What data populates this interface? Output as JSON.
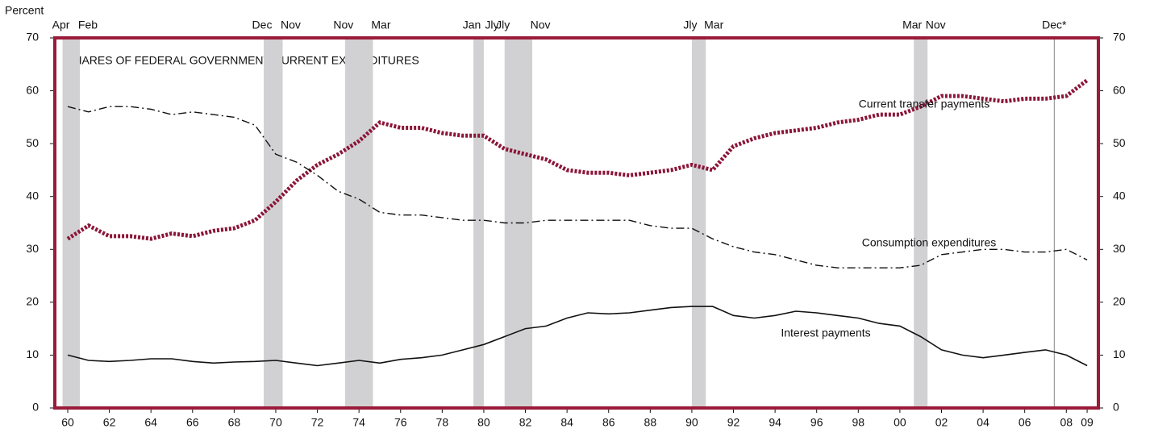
{
  "chart_data": {
    "type": "line",
    "title": "SHARES OF FEDERAL GOVERNMENT CURRENT EXPENDITURES",
    "y_label": "Percent",
    "xlim": [
      1959.88,
      2010.04
    ],
    "ylim": [
      0,
      70
    ],
    "yticks": [
      0,
      10,
      20,
      30,
      40,
      50,
      60,
      70
    ],
    "xticks": [
      {
        "value": 1960.5,
        "label": "60"
      },
      {
        "value": 1962.5,
        "label": "62"
      },
      {
        "value": 1964.5,
        "label": "64"
      },
      {
        "value": 1966.5,
        "label": "66"
      },
      {
        "value": 1968.5,
        "label": "68"
      },
      {
        "value": 1970.5,
        "label": "70"
      },
      {
        "value": 1972.5,
        "label": "72"
      },
      {
        "value": 1974.5,
        "label": "74"
      },
      {
        "value": 1976.5,
        "label": "76"
      },
      {
        "value": 1978.5,
        "label": "78"
      },
      {
        "value": 1980.5,
        "label": "80"
      },
      {
        "value": 1982.5,
        "label": "82"
      },
      {
        "value": 1984.5,
        "label": "84"
      },
      {
        "value": 1986.5,
        "label": "86"
      },
      {
        "value": 1988.5,
        "label": "88"
      },
      {
        "value": 1990.5,
        "label": "90"
      },
      {
        "value": 1992.5,
        "label": "92"
      },
      {
        "value": 1994.5,
        "label": "94"
      },
      {
        "value": 1996.5,
        "label": "96"
      },
      {
        "value": 1998.5,
        "label": "98"
      },
      {
        "value": 2000.5,
        "label": "00"
      },
      {
        "value": 2002.5,
        "label": "02"
      },
      {
        "value": 2004.5,
        "label": "04"
      },
      {
        "value": 2006.5,
        "label": "06"
      },
      {
        "value": 2008.5,
        "label": "08"
      },
      {
        "value": 2009.5,
        "label": "09"
      }
    ],
    "recessions": [
      {
        "start": 1960.25,
        "end": 1961.08,
        "start_label": "Apr",
        "end_label": "Feb"
      },
      {
        "start": 1969.92,
        "end": 1970.83,
        "start_label": "Dec",
        "end_label": "Nov"
      },
      {
        "start": 1973.83,
        "end": 1975.17,
        "start_label": "Nov",
        "end_label": "Mar"
      },
      {
        "start": 1980.0,
        "end": 1980.5,
        "start_label": "Jan",
        "end_label": "Jly"
      },
      {
        "start": 1981.5,
        "end": 1982.83,
        "start_label": "Jly",
        "end_label": "Nov"
      },
      {
        "start": 1990.5,
        "end": 1991.17,
        "start_label": "Jly",
        "end_label": "Mar"
      },
      {
        "start": 2001.17,
        "end": 2001.83,
        "start_label": "Mar",
        "end_label": "Nov"
      },
      {
        "start": 2007.92,
        "start_label": "Dec*"
      }
    ],
    "x": [
      1960.5,
      1961.5,
      1962.5,
      1963.5,
      1964.5,
      1965.5,
      1966.5,
      1967.5,
      1968.5,
      1969.5,
      1970.5,
      1971.5,
      1972.5,
      1973.5,
      1974.5,
      1975.5,
      1976.5,
      1977.5,
      1978.5,
      1979.5,
      1980.5,
      1981.5,
      1982.5,
      1983.5,
      1984.5,
      1985.5,
      1986.5,
      1987.5,
      1988.5,
      1989.5,
      1990.5,
      1991.5,
      1992.5,
      1993.5,
      1994.5,
      1995.5,
      1996.5,
      1997.5,
      1998.5,
      1999.5,
      2000.5,
      2001.5,
      2002.5,
      2003.5,
      2004.5,
      2005.5,
      2006.5,
      2007.5,
      2008.5,
      2009.5
    ],
    "series": [
      {
        "name": "Current transfer payments",
        "color": "#8b1538",
        "dash": "dotted",
        "values": [
          32,
          34.5,
          32.5,
          32.5,
          32,
          33,
          32.5,
          33.5,
          34,
          35.5,
          39,
          43,
          46,
          48,
          50.5,
          54,
          53,
          53,
          52,
          51.5,
          51.5,
          49,
          48,
          47,
          45,
          44.5,
          44.5,
          44,
          44.5,
          45,
          46,
          45,
          49.5,
          51,
          52,
          52.5,
          53,
          54,
          54.5,
          55.5,
          55.5,
          57,
          59,
          59,
          58.5,
          58,
          58.5,
          58.5,
          59,
          62
        ]
      },
      {
        "name": "Consumption expenditures",
        "color": "#111111",
        "dash": "dashdot",
        "values": [
          57,
          56,
          57,
          57,
          56.5,
          55.5,
          56,
          55.5,
          55,
          53.5,
          48,
          46.5,
          44,
          41,
          39.5,
          37,
          36.5,
          36.5,
          36,
          35.5,
          35.5,
          35,
          35,
          35.5,
          35.5,
          35.5,
          35.5,
          35.5,
          34.5,
          34,
          34,
          32,
          30.5,
          29.5,
          29,
          28,
          27,
          26.5,
          26.5,
          26.5,
          26.5,
          27,
          29,
          29.5,
          30,
          30,
          29.5,
          29.5,
          30,
          28
        ]
      },
      {
        "name": "Interest payments",
        "color": "#111111",
        "dash": "solid",
        "values": [
          10,
          9,
          8.8,
          9,
          9.3,
          9.3,
          8.8,
          8.5,
          8.7,
          8.8,
          9,
          8.5,
          8,
          8.5,
          9,
          8.5,
          9.2,
          9.5,
          10,
          11,
          12,
          13.5,
          15,
          15.5,
          17,
          18,
          17.8,
          18,
          18.5,
          19,
          19.2,
          19.2,
          17.5,
          17,
          17.5,
          18.3,
          18,
          17.5,
          17,
          16,
          15.5,
          13.5,
          11,
          10,
          9.5,
          10,
          10.5,
          11,
          10,
          8
        ]
      }
    ]
  }
}
